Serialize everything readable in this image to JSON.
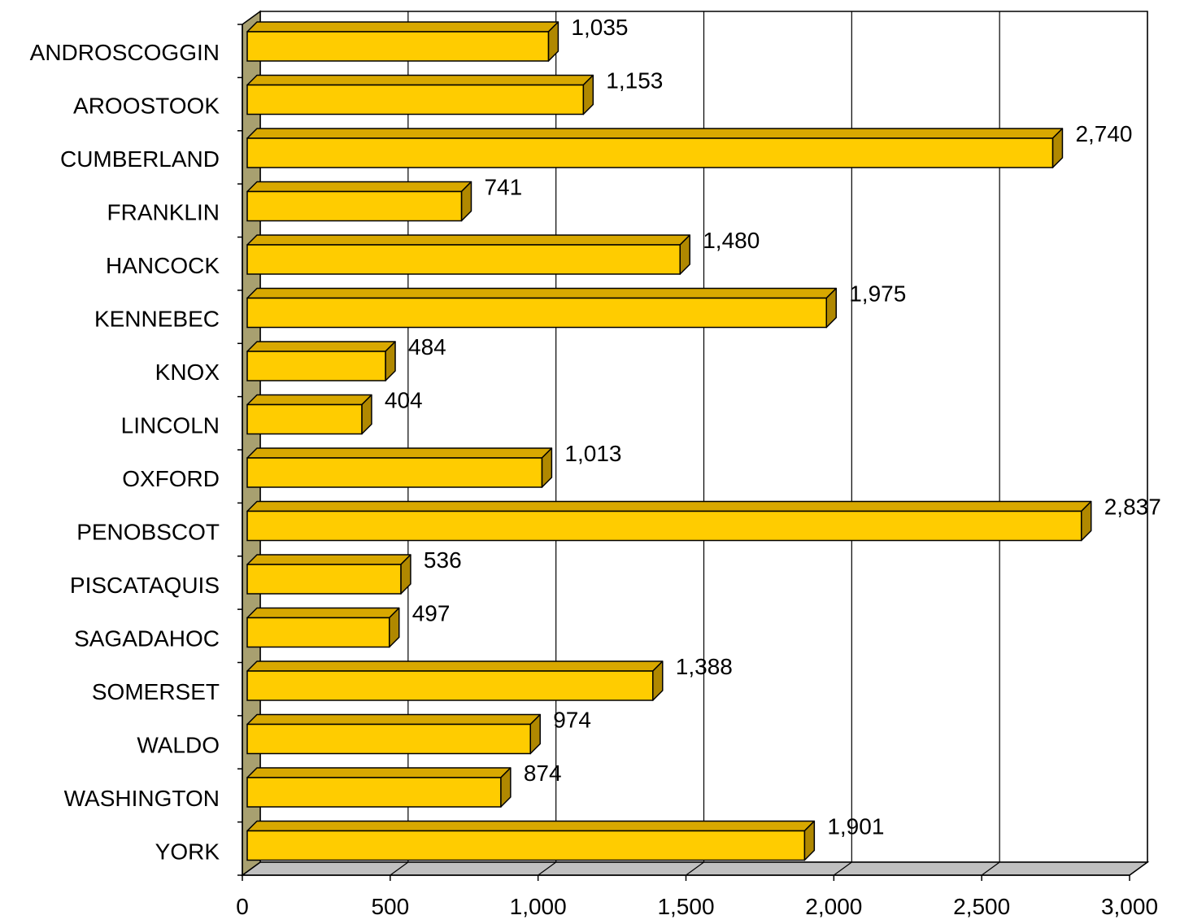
{
  "chart_data": {
    "type": "bar",
    "orientation": "horizontal",
    "style": "3d",
    "categories": [
      "ANDROSCOGGIN",
      "AROOSTOOK",
      "CUMBERLAND",
      "FRANKLIN",
      "HANCOCK",
      "KENNEBEC",
      "KNOX",
      "LINCOLN",
      "OXFORD",
      "PENOBSCOT",
      "PISCATAQUIS",
      "SAGADAHOC",
      "SOMERSET",
      "WALDO",
      "WASHINGTON",
      "YORK"
    ],
    "values": [
      1035,
      1153,
      2740,
      741,
      1480,
      1975,
      484,
      404,
      1013,
      2837,
      536,
      497,
      1388,
      974,
      874,
      1901
    ],
    "value_labels": [
      "1,035",
      "1,153",
      "2,740",
      "741",
      "1,480",
      "1,975",
      "484",
      "404",
      "1,013",
      "2,837",
      "536",
      "497",
      "1,388",
      "974",
      "874",
      "1,901"
    ],
    "xlim": [
      0,
      3000
    ],
    "xticks": [
      0,
      500,
      1000,
      1500,
      2000,
      2500,
      3000
    ],
    "xtick_labels": [
      "0",
      "500",
      "1,000",
      "1,500",
      "2,000",
      "2,500",
      "3,000"
    ],
    "grid": true,
    "legend": "none",
    "title": "",
    "xlabel": "",
    "ylabel": "",
    "colors": {
      "bar_front": "#FFCC00",
      "bar_top": "#D8A800",
      "bar_side": "#B08800",
      "wall": "#A8A070",
      "floor": "#C0C0C0",
      "grid": "#000000"
    }
  }
}
